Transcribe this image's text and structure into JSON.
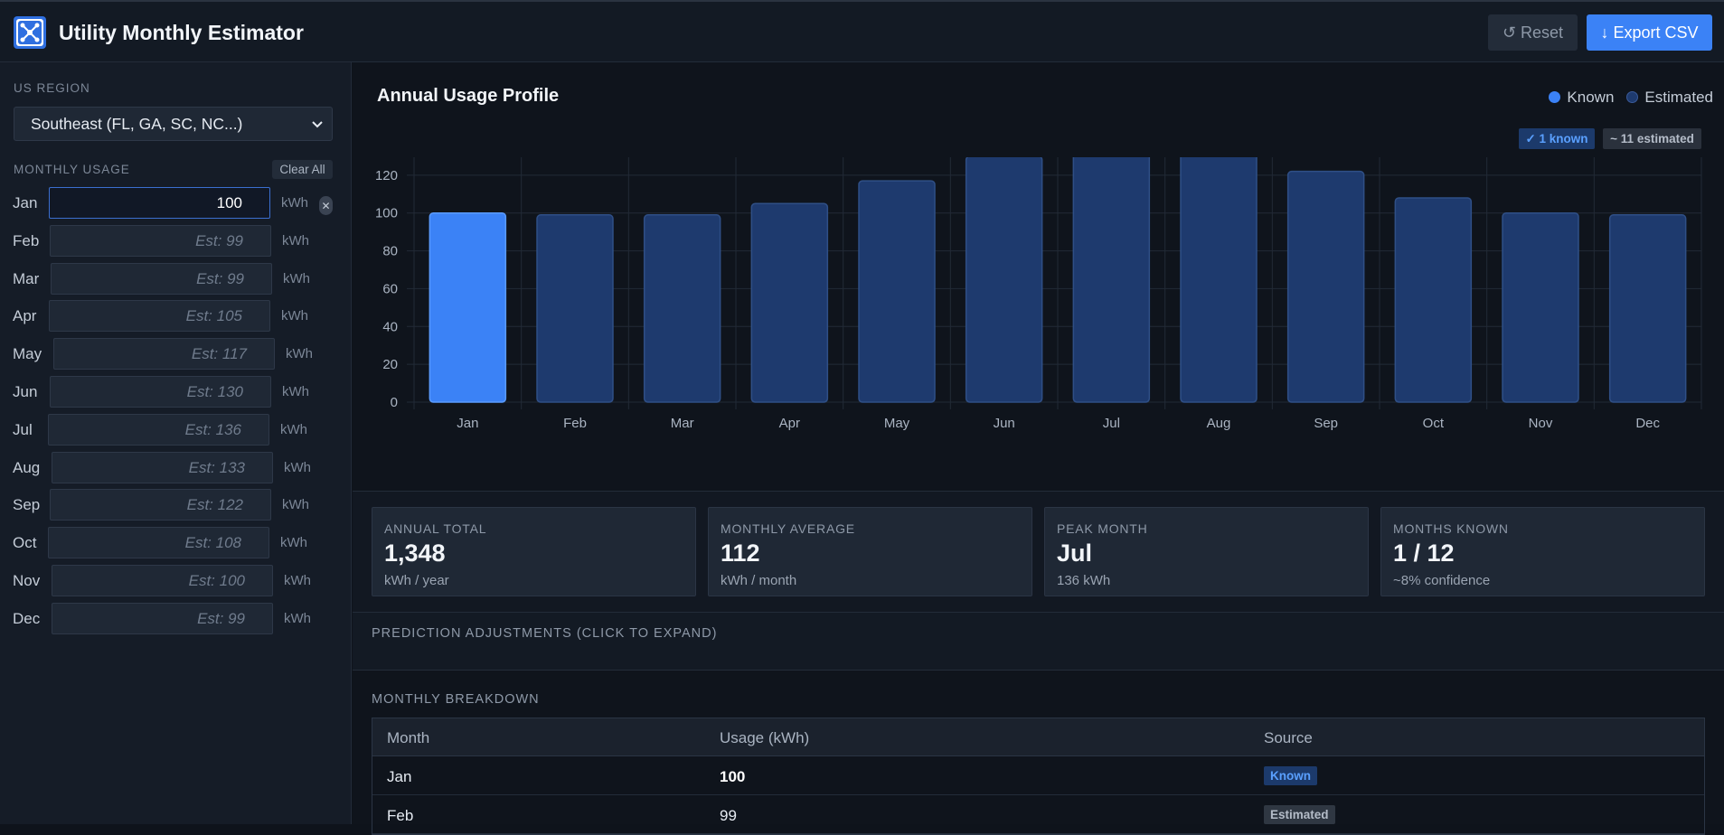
{
  "header": {
    "title": "Utility Monthly Estimator",
    "reset_label": "↺ Reset",
    "export_label": "↓ Export CSV"
  },
  "sidebar": {
    "region_label": "US REGION",
    "region_value": "Southeast (FL, GA, SC, NC...)",
    "usage_label": "MONTHLY USAGE",
    "clear_all_label": "Clear All",
    "unit": "kWh",
    "months": [
      {
        "label": "Jan",
        "value": "100",
        "placeholder": "",
        "known": true
      },
      {
        "label": "Feb",
        "value": "",
        "placeholder": "Est: 99",
        "known": false
      },
      {
        "label": "Mar",
        "value": "",
        "placeholder": "Est: 99",
        "known": false
      },
      {
        "label": "Apr",
        "value": "",
        "placeholder": "Est: 105",
        "known": false
      },
      {
        "label": "May",
        "value": "",
        "placeholder": "Est: 117",
        "known": false
      },
      {
        "label": "Jun",
        "value": "",
        "placeholder": "Est: 130",
        "known": false
      },
      {
        "label": "Jul",
        "value": "",
        "placeholder": "Est: 136",
        "known": false
      },
      {
        "label": "Aug",
        "value": "",
        "placeholder": "Est: 133",
        "known": false
      },
      {
        "label": "Sep",
        "value": "",
        "placeholder": "Est: 122",
        "known": false
      },
      {
        "label": "Oct",
        "value": "",
        "placeholder": "Est: 108",
        "known": false
      },
      {
        "label": "Nov",
        "value": "",
        "placeholder": "Est: 100",
        "known": false
      },
      {
        "label": "Dec",
        "value": "",
        "placeholder": "Est: 99",
        "known": false
      }
    ]
  },
  "chart": {
    "title": "Annual Usage Profile",
    "legend_known": "Known",
    "legend_estimated": "Estimated",
    "badge_known": "✓ 1 known",
    "badge_estimated": "~ 11 estimated"
  },
  "chart_data": {
    "type": "bar",
    "categories": [
      "Jan",
      "Feb",
      "Mar",
      "Apr",
      "May",
      "Jun",
      "Jul",
      "Aug",
      "Sep",
      "Oct",
      "Nov",
      "Dec"
    ],
    "series": [
      {
        "name": "Known",
        "values": [
          100,
          null,
          null,
          null,
          null,
          null,
          null,
          null,
          null,
          null,
          null,
          null
        ]
      },
      {
        "name": "Estimated",
        "values": [
          null,
          99,
          99,
          105,
          117,
          130,
          136,
          133,
          122,
          108,
          100,
          99
        ]
      }
    ],
    "values": [
      100,
      99,
      99,
      105,
      117,
      130,
      136,
      133,
      122,
      108,
      100,
      99
    ],
    "known": [
      true,
      false,
      false,
      false,
      false,
      false,
      false,
      false,
      false,
      false,
      false,
      false
    ],
    "ylim": [
      0,
      140
    ],
    "yticks": [
      0,
      20,
      40,
      60,
      80,
      100,
      120,
      140
    ],
    "grid": true,
    "legend_position": "top-right",
    "colors": {
      "known": "#3b82f6",
      "estimated": "#1e3a6e"
    }
  },
  "stats": [
    {
      "label": "ANNUAL TOTAL",
      "value": "1,348",
      "sub": "kWh / year"
    },
    {
      "label": "MONTHLY AVERAGE",
      "value": "112",
      "sub": "kWh / month"
    },
    {
      "label": "PEAK MONTH",
      "value": "Jul",
      "sub": "136 kWh"
    },
    {
      "label": "MONTHS KNOWN",
      "value": "1 / 12",
      "sub": "~8% confidence"
    }
  ],
  "adjustments": {
    "label": "PREDICTION ADJUSTMENTS (CLICK TO EXPAND)"
  },
  "breakdown": {
    "label": "MONTHLY BREAKDOWN",
    "columns": [
      "Month",
      "Usage (kWh)",
      "Source"
    ],
    "rows": [
      {
        "month": "Jan",
        "usage": "100",
        "source": "Known"
      },
      {
        "month": "Feb",
        "usage": "99",
        "source": "Estimated"
      }
    ]
  }
}
